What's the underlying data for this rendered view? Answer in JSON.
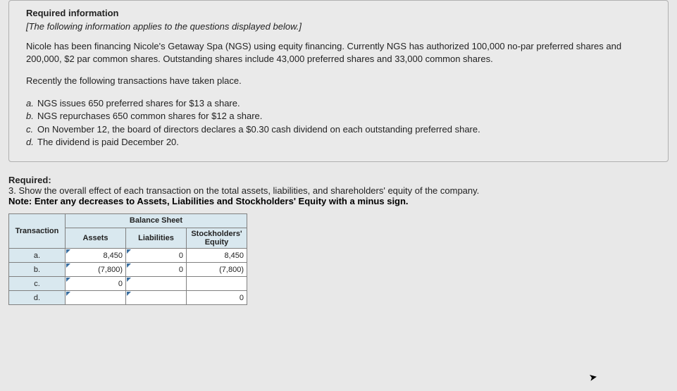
{
  "info": {
    "heading": "Required information",
    "subheading": "[The following information applies to the questions displayed below.]",
    "para1": "Nicole has been financing Nicole's Getaway Spa (NGS) using equity financing. Currently NGS has authorized 100,000 no-par preferred shares and 200,000, $2 par common shares. Outstanding shares include 43,000 preferred shares and 33,000 common shares.",
    "para2": "Recently the following transactions have taken place.",
    "items": [
      {
        "lbl": "a.",
        "text": "NGS issues 650 preferred shares for $13 a share."
      },
      {
        "lbl": "b.",
        "text": "NGS repurchases 650 common shares for $12 a share."
      },
      {
        "lbl": "c.",
        "text": "On November 12, the board of directors declares a $0.30 cash dividend on each outstanding preferred share."
      },
      {
        "lbl": "d.",
        "text": "The dividend is paid December 20."
      }
    ]
  },
  "required": {
    "title": "Required:",
    "line": "3. Show the overall effect of each transaction on the total assets, liabilities, and shareholders' equity of the company.",
    "note_prefix": "Note: ",
    "note_text": "Enter any decreases to Assets, Liabilities and Stockholders' Equity with a minus sign."
  },
  "table": {
    "corner": "Transaction",
    "group_header": "Balance Sheet",
    "cols": [
      "Assets",
      "Liabilities",
      "Stockholders' Equity"
    ],
    "rows": [
      {
        "label": "a.",
        "assets": "8,450",
        "liab": "0",
        "se": "8,450"
      },
      {
        "label": "b.",
        "assets": "(7,800)",
        "liab": "0",
        "se": "(7,800)"
      },
      {
        "label": "c.",
        "assets": "0",
        "liab": "",
        "se": ""
      },
      {
        "label": "d.",
        "assets": "",
        "liab": "",
        "se": "0"
      }
    ],
    "col_widths": {
      "transaction": 80,
      "data": 86
    },
    "colors": {
      "header_bg": "#d9e8ef",
      "border": "#808080",
      "tick": "#3a6fa0",
      "dashed": "#c05050",
      "cell_bg": "#ffffff"
    }
  }
}
